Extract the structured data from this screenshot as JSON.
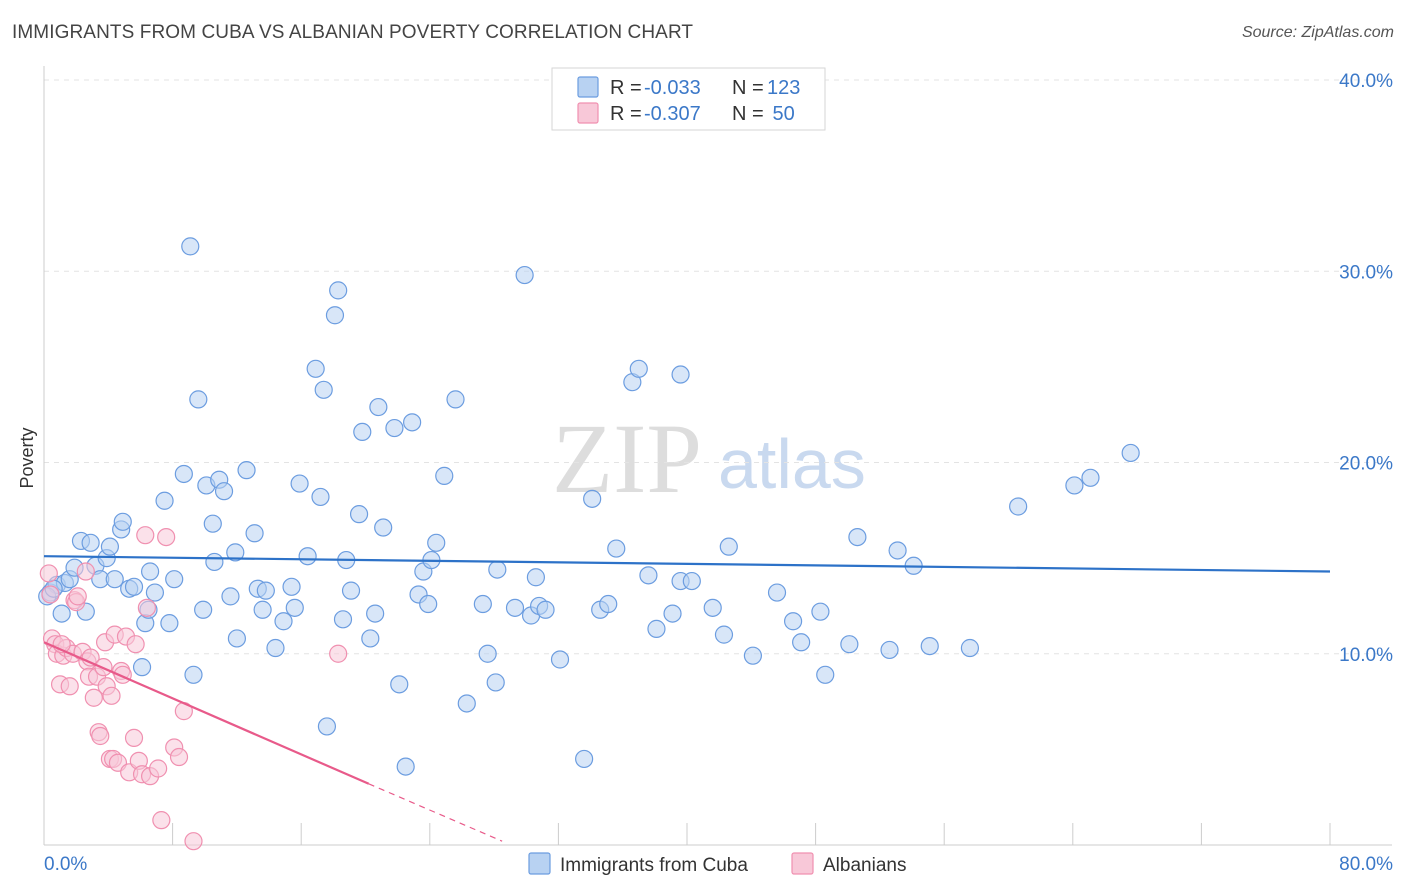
{
  "header": {
    "title": "IMMIGRANTS FROM CUBA VS ALBANIAN POVERTY CORRELATION CHART",
    "source": "Source: ZipAtlas.com"
  },
  "watermark": {
    "zip": "ZIP",
    "atlas": "atlas"
  },
  "legend_top": {
    "rows": [
      {
        "r_label": "R = ",
        "r_value": "-0.033",
        "n_label": "N = ",
        "n_value": "123",
        "color": "#a8c8f0"
      },
      {
        "r_label": "R = ",
        "r_value": "-0.307",
        "n_label": "N = ",
        "n_value": " 50",
        "color": "#f8b8cc"
      }
    ]
  },
  "chart_data": {
    "type": "scatter",
    "title": "IMMIGRANTS FROM CUBA VS ALBANIAN POVERTY CORRELATION CHART",
    "xlabel": "",
    "ylabel": "Poverty",
    "xlim": [
      0,
      80
    ],
    "ylim": [
      0,
      40
    ],
    "x_tick_labels": [
      "0.0%",
      "80.0%"
    ],
    "y_ticks": [
      10,
      20,
      30,
      40
    ],
    "y_tick_labels": [
      "10.0%",
      "20.0%",
      "30.0%",
      "40.0%"
    ],
    "grid": true,
    "legend_position": "bottom",
    "series": [
      {
        "name": "Immigrants from Cuba",
        "color": "#6c9de0",
        "fill": "#b8d2f2",
        "trend": {
          "x": [
            0,
            80
          ],
          "y": [
            15.1,
            14.3
          ],
          "style": "solid",
          "color": "#2d72c8"
        },
        "points": [
          [
            0.4,
            13.2
          ],
          [
            0.8,
            13.6
          ],
          [
            1.1,
            12.1
          ],
          [
            1.3,
            13.7
          ],
          [
            1.6,
            13.9
          ],
          [
            1.9,
            14.5
          ],
          [
            2.3,
            15.9
          ],
          [
            2.6,
            12.2
          ],
          [
            2.9,
            15.8
          ],
          [
            3.2,
            14.6
          ],
          [
            3.5,
            13.9
          ],
          [
            3.9,
            15.0
          ],
          [
            4.1,
            15.6
          ],
          [
            4.4,
            13.9
          ],
          [
            4.8,
            16.5
          ],
          [
            4.9,
            16.9
          ],
          [
            5.3,
            13.4
          ],
          [
            5.6,
            13.5
          ],
          [
            6.1,
            9.3
          ],
          [
            6.3,
            11.6
          ],
          [
            6.5,
            12.3
          ],
          [
            6.6,
            14.3
          ],
          [
            6.9,
            13.2
          ],
          [
            7.5,
            18.0
          ],
          [
            7.8,
            11.6
          ],
          [
            8.1,
            13.9
          ],
          [
            8.7,
            19.4
          ],
          [
            9.1,
            31.3
          ],
          [
            9.3,
            8.9
          ],
          [
            9.6,
            23.3
          ],
          [
            9.9,
            12.3
          ],
          [
            10.1,
            18.8
          ],
          [
            10.5,
            16.8
          ],
          [
            10.6,
            14.8
          ],
          [
            10.9,
            19.1
          ],
          [
            11.2,
            18.5
          ],
          [
            11.6,
            13.0
          ],
          [
            11.9,
            15.3
          ],
          [
            12.0,
            10.8
          ],
          [
            12.6,
            19.6
          ],
          [
            13.1,
            16.3
          ],
          [
            13.3,
            13.4
          ],
          [
            13.6,
            12.3
          ],
          [
            13.8,
            13.3
          ],
          [
            14.4,
            10.3
          ],
          [
            14.9,
            11.7
          ],
          [
            15.4,
            13.5
          ],
          [
            15.6,
            12.4
          ],
          [
            15.9,
            18.9
          ],
          [
            16.4,
            15.1
          ],
          [
            16.9,
            24.9
          ],
          [
            17.2,
            18.2
          ],
          [
            17.4,
            23.8
          ],
          [
            17.6,
            6.2
          ],
          [
            18.1,
            27.7
          ],
          [
            18.3,
            29.0
          ],
          [
            18.6,
            11.8
          ],
          [
            18.8,
            14.9
          ],
          [
            19.1,
            13.3
          ],
          [
            19.6,
            17.3
          ],
          [
            19.8,
            21.6
          ],
          [
            20.3,
            10.8
          ],
          [
            20.6,
            12.1
          ],
          [
            20.8,
            22.9
          ],
          [
            21.1,
            16.6
          ],
          [
            21.8,
            21.8
          ],
          [
            22.1,
            8.4
          ],
          [
            22.5,
            4.1
          ],
          [
            22.9,
            22.1
          ],
          [
            23.3,
            13.1
          ],
          [
            23.6,
            14.3
          ],
          [
            23.9,
            12.6
          ],
          [
            24.1,
            14.9
          ],
          [
            24.4,
            15.8
          ],
          [
            24.9,
            19.3
          ],
          [
            25.6,
            23.3
          ],
          [
            26.3,
            7.4
          ],
          [
            27.3,
            12.6
          ],
          [
            27.6,
            10.0
          ],
          [
            28.1,
            8.5
          ],
          [
            28.2,
            14.4
          ],
          [
            29.3,
            12.4
          ],
          [
            29.9,
            29.8
          ],
          [
            30.3,
            12.0
          ],
          [
            30.6,
            14.0
          ],
          [
            30.8,
            12.5
          ],
          [
            31.2,
            12.3
          ],
          [
            32.1,
            9.7
          ],
          [
            33.6,
            4.5
          ],
          [
            34.1,
            18.1
          ],
          [
            34.6,
            12.3
          ],
          [
            35.1,
            12.6
          ],
          [
            35.6,
            15.5
          ],
          [
            36.6,
            24.2
          ],
          [
            37.0,
            24.9
          ],
          [
            37.6,
            14.1
          ],
          [
            38.1,
            11.3
          ],
          [
            39.1,
            12.1
          ],
          [
            39.6,
            24.6
          ],
          [
            39.6,
            13.8
          ],
          [
            40.3,
            13.8
          ],
          [
            41.6,
            12.4
          ],
          [
            42.3,
            11.0
          ],
          [
            42.6,
            15.6
          ],
          [
            44.1,
            9.9
          ],
          [
            45.6,
            13.2
          ],
          [
            46.6,
            11.7
          ],
          [
            47.1,
            10.6
          ],
          [
            48.3,
            12.2
          ],
          [
            48.6,
            8.9
          ],
          [
            50.1,
            10.5
          ],
          [
            50.6,
            16.1
          ],
          [
            52.6,
            10.2
          ],
          [
            53.1,
            15.4
          ],
          [
            54.1,
            14.6
          ],
          [
            55.1,
            10.4
          ],
          [
            57.6,
            10.3
          ],
          [
            60.6,
            17.7
          ],
          [
            64.1,
            18.8
          ],
          [
            65.1,
            19.2
          ],
          [
            67.6,
            20.5
          ],
          [
            0.2,
            13.0
          ],
          [
            0.6,
            13.4
          ]
        ]
      },
      {
        "name": "Albanians",
        "color": "#f090b0",
        "fill": "#f8c8d8",
        "trend": {
          "x": [
            0,
            20.2
          ],
          "y": [
            10.6,
            3.2
          ],
          "style": "solid",
          "color": "#e85a8a",
          "extension": {
            "x": [
              20.2,
              28.5
            ],
            "y": [
              3.2,
              0.2
            ],
            "style": "dashed"
          }
        },
        "points": [
          [
            0.3,
            14.2
          ],
          [
            0.5,
            10.8
          ],
          [
            0.7,
            10.5
          ],
          [
            0.8,
            10.0
          ],
          [
            1.0,
            8.4
          ],
          [
            1.2,
            9.9
          ],
          [
            1.4,
            10.3
          ],
          [
            1.6,
            8.3
          ],
          [
            1.8,
            10.0
          ],
          [
            1.9,
            12.8
          ],
          [
            2.0,
            12.7
          ],
          [
            2.1,
            13.0
          ],
          [
            2.4,
            10.1
          ],
          [
            2.6,
            14.3
          ],
          [
            2.7,
            9.6
          ],
          [
            2.8,
            8.8
          ],
          [
            2.9,
            9.8
          ],
          [
            3.1,
            7.7
          ],
          [
            3.3,
            8.8
          ],
          [
            3.4,
            5.9
          ],
          [
            3.5,
            5.7
          ],
          [
            3.7,
            9.3
          ],
          [
            3.8,
            10.6
          ],
          [
            3.9,
            8.3
          ],
          [
            4.1,
            4.5
          ],
          [
            4.2,
            7.8
          ],
          [
            4.3,
            4.5
          ],
          [
            4.4,
            11.0
          ],
          [
            4.6,
            4.3
          ],
          [
            4.8,
            9.1
          ],
          [
            4.9,
            8.9
          ],
          [
            5.1,
            10.9
          ],
          [
            5.3,
            3.8
          ],
          [
            5.6,
            5.6
          ],
          [
            5.7,
            10.5
          ],
          [
            5.9,
            4.4
          ],
          [
            6.1,
            3.7
          ],
          [
            6.3,
            16.2
          ],
          [
            6.4,
            12.4
          ],
          [
            6.6,
            3.6
          ],
          [
            7.1,
            4.0
          ],
          [
            7.3,
            1.3
          ],
          [
            7.6,
            16.1
          ],
          [
            8.1,
            5.1
          ],
          [
            8.4,
            4.6
          ],
          [
            8.7,
            7.0
          ],
          [
            9.3,
            0.2
          ],
          [
            18.3,
            10.0
          ],
          [
            0.4,
            13.1
          ],
          [
            1.1,
            10.5
          ]
        ]
      }
    ]
  },
  "legend_bottom": {
    "items": [
      {
        "label": "Immigrants from Cuba",
        "color": "#a8c8f0",
        "border": "#6c9de0"
      },
      {
        "label": "Albanians",
        "color": "#f8c8d8",
        "border": "#f090b0"
      }
    ]
  }
}
